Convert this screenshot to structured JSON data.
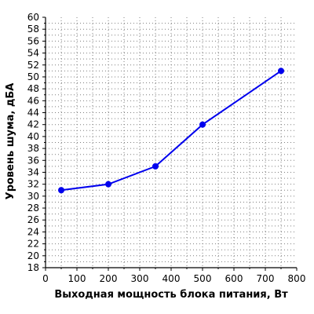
{
  "chart_data": {
    "type": "line",
    "title": "",
    "xlabel": "Выходная мощность блока питания, Вт",
    "ylabel": "Уровень шума, дБА",
    "xlim": [
      0,
      800
    ],
    "ylim": [
      18,
      60
    ],
    "x_ticks": [
      0,
      100,
      200,
      300,
      400,
      500,
      600,
      700,
      800
    ],
    "y_ticks": [
      18,
      20,
      22,
      24,
      26,
      28,
      30,
      32,
      34,
      36,
      38,
      40,
      42,
      44,
      46,
      48,
      50,
      52,
      54,
      56,
      58,
      60
    ],
    "x_minor_step": 50,
    "y_minor_step": 1,
    "grid": true,
    "series": [
      {
        "color": "#0000ee",
        "x": [
          50,
          200,
          350,
          500,
          750
        ],
        "values": [
          31,
          32,
          35,
          42,
          51
        ]
      }
    ]
  }
}
